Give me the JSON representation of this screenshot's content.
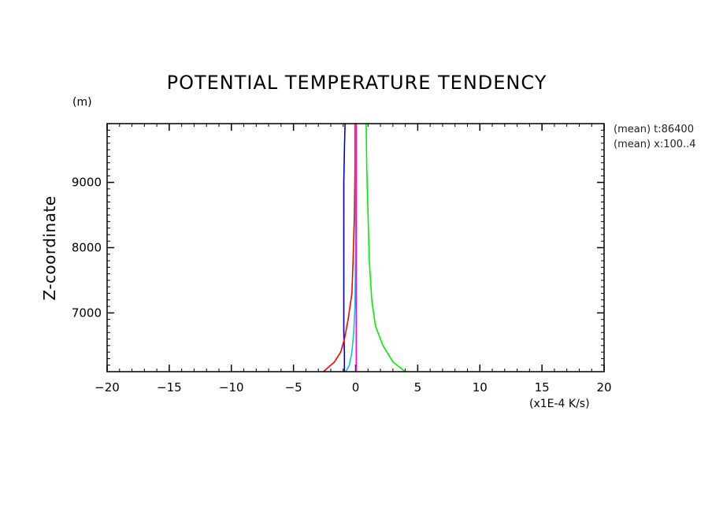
{
  "chart_data": {
    "type": "line",
    "title": "POTENTIAL TEMPERATURE TENDENCY",
    "xlabel": "(x1E-4 K/s)",
    "ylabel": "Z-coordinate",
    "y_unit_label": "(m)",
    "xlim": [
      -20,
      20
    ],
    "ylim": [
      6100,
      9900
    ],
    "x_ticks": [
      -20,
      -15,
      -10,
      -5,
      0,
      5,
      10,
      15,
      20
    ],
    "x_tick_labels": [
      "−20",
      "−15",
      "−10",
      "−5",
      "0",
      "5",
      "10",
      "15",
      "20"
    ],
    "y_ticks": [
      7000,
      8000,
      9000
    ],
    "y_tick_labels": [
      "7000",
      "8000",
      "9000"
    ],
    "grid": false,
    "annotations": [
      "(mean) t:86400",
      "(mean) x:100..4"
    ],
    "series": [
      {
        "color": "#0000cc",
        "x": [
          -0.9,
          -0.9,
          -0.95,
          -0.95,
          -0.95,
          -0.95,
          -0.9,
          -0.85
        ],
        "y": [
          6100,
          6400,
          6700,
          7000,
          8000,
          9000,
          9500,
          9900
        ]
      },
      {
        "color": "#ff0000",
        "x": [
          -2.6,
          -1.7,
          -1.2,
          -0.9,
          -0.6,
          -0.3,
          -0.2,
          -0.1,
          -0.05,
          -0.05
        ],
        "y": [
          6100,
          6250,
          6400,
          6600,
          6900,
          7300,
          7800,
          8500,
          9200,
          9900
        ]
      },
      {
        "color": "#00cccc",
        "x": [
          -0.8,
          -0.5,
          -0.3,
          -0.15,
          -0.05,
          0.0,
          0.0
        ],
        "y": [
          6100,
          6200,
          6400,
          6700,
          7100,
          8000,
          9900
        ]
      },
      {
        "color": "#00ee00",
        "x": [
          4.0,
          3.0,
          2.2,
          1.6,
          1.3,
          1.1,
          1.0,
          0.9,
          0.85
        ],
        "y": [
          6100,
          6250,
          6500,
          6800,
          7200,
          7800,
          8500,
          9200,
          9900
        ]
      },
      {
        "color": "#ff00ff",
        "x": [
          0.05,
          0.05,
          0.05,
          0.05
        ],
        "y": [
          6100,
          7500,
          8800,
          9900
        ]
      }
    ]
  }
}
